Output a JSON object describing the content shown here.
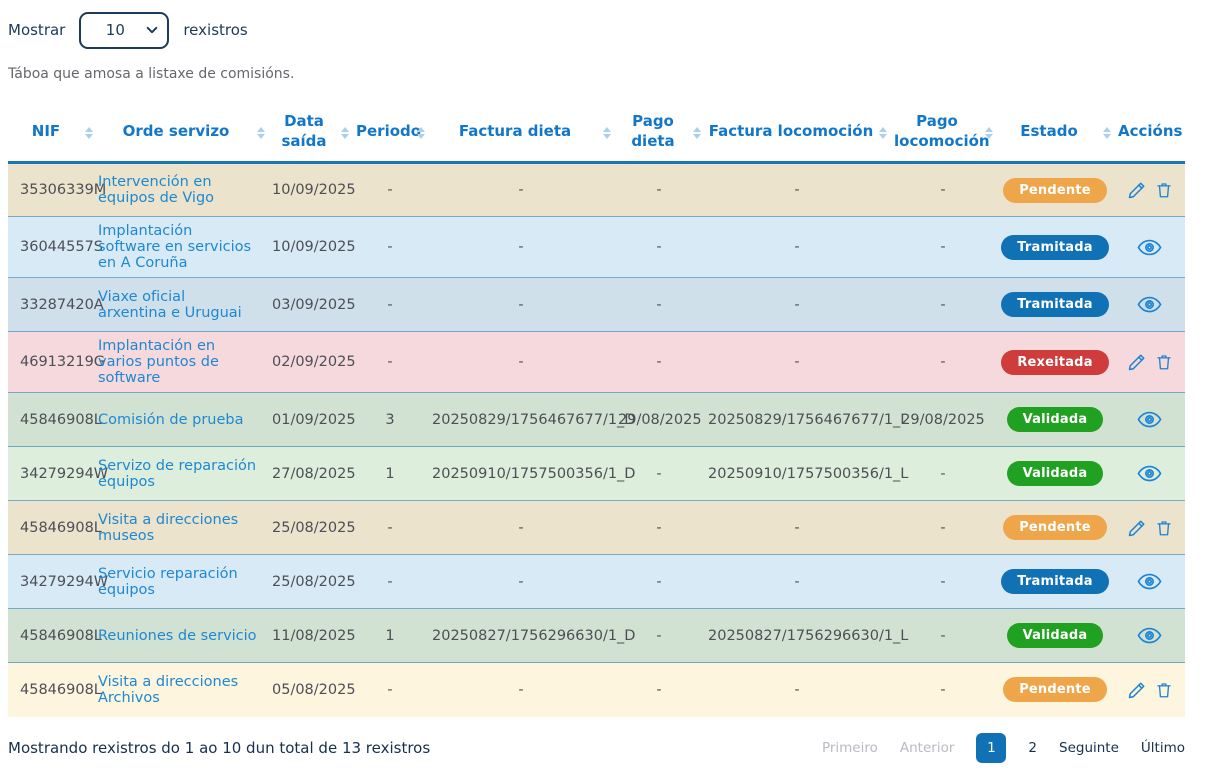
{
  "controls": {
    "show_label": "Mostrar",
    "records_label": "rexistros",
    "page_size": "10"
  },
  "caption": "Táboa que amosa a listaxe de comisións.",
  "table": {
    "columns": [
      {
        "label": "NIF",
        "sortable": true
      },
      {
        "label": "Orde servizo",
        "sortable": true
      },
      {
        "label": "Data saída",
        "sortable": true
      },
      {
        "label": "Periodo",
        "sortable": true
      },
      {
        "label": "Factura dieta",
        "sortable": true
      },
      {
        "label": "Pago dieta",
        "sortable": true
      },
      {
        "label": "Factura locomoción",
        "sortable": true
      },
      {
        "label": "Pago locomoción",
        "sortable": true
      },
      {
        "label": "Estado",
        "sortable": true
      },
      {
        "label": "Accións",
        "sortable": false
      }
    ],
    "rows": [
      {
        "nif": "35306339M",
        "orde": "Intervención en equipos de Vigo",
        "data_saida": "10/09/2025",
        "periodo": "-",
        "factura_dieta": "-",
        "pago_dieta": "-",
        "factura_locomocion": "-",
        "pago_locomocion": "-",
        "estado": "Pendente"
      },
      {
        "nif": "36044557S",
        "orde": "Implantación software en servicios en A Coruña",
        "data_saida": "10/09/2025",
        "periodo": "-",
        "factura_dieta": "-",
        "pago_dieta": "-",
        "factura_locomocion": "-",
        "pago_locomocion": "-",
        "estado": "Tramitada"
      },
      {
        "nif": "33287420A",
        "orde": "Viaxe oficial arxentina e Uruguai",
        "data_saida": "03/09/2025",
        "periodo": "-",
        "factura_dieta": "-",
        "pago_dieta": "-",
        "factura_locomocion": "-",
        "pago_locomocion": "-",
        "estado": "Tramitada"
      },
      {
        "nif": "46913219G",
        "orde": "Implantación en varios puntos de software",
        "data_saida": "02/09/2025",
        "periodo": "-",
        "factura_dieta": "-",
        "pago_dieta": "-",
        "factura_locomocion": "-",
        "pago_locomocion": "-",
        "estado": "Rexeitada"
      },
      {
        "nif": "45846908L",
        "orde": "Comisión de prueba",
        "data_saida": "01/09/2025",
        "periodo": "3",
        "factura_dieta": "20250829/1756467677/1_D",
        "pago_dieta": "29/08/2025",
        "factura_locomocion": "20250829/1756467677/1_L",
        "pago_locomocion": "29/08/2025",
        "estado": "Validada"
      },
      {
        "nif": "34279294W",
        "orde": "Servizo de reparación equipos",
        "data_saida": "27/08/2025",
        "periodo": "1",
        "factura_dieta": "20250910/1757500356/1_D",
        "pago_dieta": "-",
        "factura_locomocion": "20250910/1757500356/1_L",
        "pago_locomocion": "-",
        "estado": "Validada"
      },
      {
        "nif": "45846908L",
        "orde": "Visita a direcciones museos",
        "data_saida": "25/08/2025",
        "periodo": "-",
        "factura_dieta": "-",
        "pago_dieta": "-",
        "factura_locomocion": "-",
        "pago_locomocion": "-",
        "estado": "Pendente"
      },
      {
        "nif": "34279294W",
        "orde": "Servicio reparación equipos",
        "data_saida": "25/08/2025",
        "periodo": "-",
        "factura_dieta": "-",
        "pago_dieta": "-",
        "factura_locomocion": "-",
        "pago_locomocion": "-",
        "estado": "Tramitada"
      },
      {
        "nif": "45846908L",
        "orde": "Reuniones de servicio",
        "data_saida": "11/08/2025",
        "periodo": "1",
        "factura_dieta": "20250827/1756296630/1_D",
        "pago_dieta": "-",
        "factura_locomocion": "20250827/1756296630/1_L",
        "pago_locomocion": "-",
        "estado": "Validada"
      },
      {
        "nif": "45846908L",
        "orde": "Visita a direcciones Archivos",
        "data_saida": "05/08/2025",
        "periodo": "-",
        "factura_dieta": "-",
        "pago_dieta": "-",
        "factura_locomocion": "-",
        "pago_locomocion": "-",
        "estado": "Pendente"
      }
    ]
  },
  "footer": {
    "summary": "Mostrando rexistros do 1 ao 10 dun total de 13 rexistros",
    "pagination": {
      "first": "Primeiro",
      "previous": "Anterior",
      "pages": [
        "1",
        "2"
      ],
      "active_page": "1",
      "next": "Seguinte",
      "last": "Último"
    }
  },
  "colors": {
    "header_text": "#1277c8",
    "link": "#1e88d2",
    "table_top_border": "#1878b4",
    "badge_pendente": "#efa54a",
    "badge_tramitada": "#1171b5",
    "badge_rexeitada": "#cf3c3c",
    "badge_validada": "#21a121",
    "row_pendente_dark": "#ebe3cb",
    "row_pendente_light": "#fdf5dd",
    "row_tramitada_light": "#d8eaf6",
    "row_tramitada_dark": "#cfe0ea",
    "row_rexeitada": "#f6d9dc",
    "row_validada_dark": "#d2e2d2",
    "row_validada_light": "#ddeedd",
    "pagination_active": "#1171b5",
    "pagination_disabled": "#b9bac2"
  }
}
